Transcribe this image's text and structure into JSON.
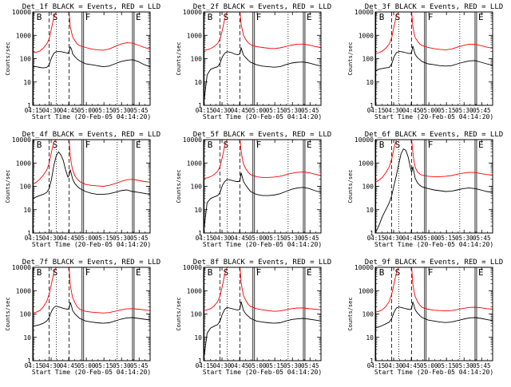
{
  "chart_data": {
    "type": "line",
    "shared": {
      "xlabel": "Start Time (20-Feb-05 04:14:20)",
      "ylabel": "Counts/sec",
      "x_unit": "minutes since 04:14:20",
      "xlim": [
        0,
        100
      ],
      "ylim": [
        1,
        10000
      ],
      "yscale": "log",
      "xtick_labels": [
        "04:15",
        "04:30",
        "04:45",
        "05:00",
        "05:15",
        "05:30",
        "05:45"
      ],
      "xtick_values": [
        0.67,
        15.67,
        30.67,
        45.67,
        60.67,
        75.67,
        90.67
      ],
      "ytick_labels": [
        "1",
        "10",
        "100",
        "1000",
        "10000"
      ],
      "ytick_values": [
        1,
        10,
        100,
        1000,
        10000
      ],
      "series_names": [
        "Events",
        "LLD"
      ],
      "series_colors": [
        "#000000",
        "#ff0000"
      ],
      "interval_markers": [
        {
          "label": "B",
          "x": 0.5,
          "style": "solid"
        },
        {
          "label": "S",
          "x": 14,
          "style": "dashed"
        },
        {
          "label": "",
          "x": 20,
          "style": "dotted"
        },
        {
          "label": "",
          "x": 31,
          "style": "dashed"
        },
        {
          "label": "F",
          "x": 42,
          "style": "solid"
        },
        {
          "label": "",
          "x": 72,
          "style": "dotted"
        },
        {
          "label": "E",
          "x": 85,
          "style": "solid"
        }
      ],
      "x_sample": [
        0,
        3,
        6,
        9,
        12,
        14,
        16,
        18,
        20,
        22,
        24,
        26,
        28,
        30,
        31,
        32,
        33,
        34,
        36,
        38,
        40,
        45,
        50,
        55,
        60,
        65,
        70,
        75,
        80,
        85,
        90,
        95,
        100
      ]
    },
    "panels": [
      {
        "title": "Det_1f BLACK = Events, RED = LLD",
        "series": [
          {
            "name": "Events",
            "values": [
              45,
              45,
              42,
              40,
              42,
              55,
              110,
              170,
              200,
              200,
              200,
              190,
              180,
              170,
              200,
              320,
              260,
              160,
              120,
              95,
              80,
              60,
              55,
              50,
              45,
              48,
              60,
              75,
              85,
              90,
              75,
              55,
              45
            ]
          },
          {
            "name": "LLD",
            "values": [
              180,
              190,
              210,
              280,
              430,
              700,
              2000,
              6000,
              10000,
              10000,
              10000,
              10000,
              10000,
              10000,
              10000,
              2400,
              1400,
              850,
              580,
              420,
              360,
              300,
              260,
              240,
              230,
              260,
              330,
              420,
              480,
              460,
              380,
              300,
              260
            ]
          }
        ]
      },
      {
        "title": "Det_2f BLACK = Events, RED = LLD",
        "series": [
          {
            "name": "Events",
            "values": [
              1,
              20,
              35,
              40,
              45,
              65,
              120,
              170,
              200,
              190,
              180,
              160,
              150,
              150,
              170,
              300,
              200,
              140,
              110,
              85,
              70,
              55,
              48,
              45,
              43,
              45,
              55,
              65,
              70,
              72,
              65,
              55,
              48
            ]
          },
          {
            "name": "LLD",
            "values": [
              230,
              240,
              270,
              330,
              450,
              700,
              1700,
              5000,
              10000,
              10000,
              10000,
              10000,
              10000,
              10000,
              10000,
              3000,
              1700,
              1000,
              650,
              480,
              400,
              330,
              300,
              280,
              270,
              290,
              330,
              380,
              420,
              420,
              380,
              330,
              300
            ]
          }
        ]
      },
      {
        "title": "Det_3f BLACK = Events, RED = LLD",
        "series": [
          {
            "name": "Events",
            "values": [
              30,
              35,
              38,
              40,
              42,
              60,
              120,
              180,
              200,
              200,
              190,
              180,
              170,
              165,
              190,
              350,
              230,
              150,
              110,
              90,
              75,
              60,
              55,
              50,
              48,
              50,
              60,
              70,
              80,
              82,
              70,
              60,
              52
            ]
          },
          {
            "name": "LLD",
            "values": [
              160,
              180,
              210,
              280,
              430,
              800,
              2500,
              7000,
              10000,
              10000,
              10000,
              10000,
              10000,
              10000,
              10000,
              2500,
              1300,
              800,
              560,
              420,
              360,
              300,
              270,
              250,
              240,
              260,
              310,
              370,
              420,
              410,
              360,
              310,
              280
            ]
          }
        ]
      },
      {
        "title": "Det_4f BLACK = Events, RED = LLD",
        "series": [
          {
            "name": "Events",
            "values": [
              30,
              35,
              40,
              45,
              55,
              80,
              200,
              800,
              2000,
              3000,
              2200,
              1300,
              500,
              250,
              300,
              520,
              330,
              200,
              130,
              100,
              80,
              60,
              50,
              45,
              45,
              48,
              55,
              65,
              70,
              60,
              55,
              50,
              45
            ]
          },
          {
            "name": "LLD",
            "values": [
              120,
              150,
              200,
              300,
              500,
              1000,
              3000,
              8000,
              10000,
              10000,
              10000,
              10000,
              10000,
              10000,
              10000,
              2000,
              900,
              500,
              280,
              200,
              160,
              120,
              110,
              105,
              100,
              110,
              130,
              160,
              190,
              200,
              180,
              160,
              150
            ]
          }
        ]
      },
      {
        "title": "Det_5f BLACK = Events, RED = LLD",
        "series": [
          {
            "name": "Events",
            "values": [
              1,
              20,
              30,
              35,
              40,
              55,
              110,
              160,
              200,
              190,
              180,
              170,
              160,
              160,
              180,
              380,
              250,
              160,
              110,
              80,
              60,
              45,
              40,
              40,
              42,
              48,
              60,
              75,
              85,
              90,
              80,
              65,
              55
            ]
          },
          {
            "name": "LLD",
            "values": [
              220,
              230,
              260,
              320,
              450,
              700,
              1800,
              5500,
              10000,
              10000,
              10000,
              10000,
              10000,
              10000,
              10000,
              3200,
              1600,
              900,
              560,
              400,
              320,
              260,
              240,
              240,
              250,
              270,
              310,
              360,
              400,
              410,
              380,
              330,
              290
            ]
          }
        ]
      },
      {
        "title": "Det_6f BLACK = Events, RED = LLD",
        "series": [
          {
            "name": "Events",
            "values": [
              1,
              2,
              5,
              10,
              20,
              40,
              110,
              300,
              900,
              2500,
              4000,
              3500,
              1800,
              600,
              400,
              700,
              400,
              220,
              140,
              110,
              95,
              80,
              70,
              65,
              60,
              62,
              70,
              80,
              85,
              80,
              70,
              60,
              55
            ]
          },
          {
            "name": "LLD",
            "values": [
              150,
              180,
              240,
              380,
              700,
              1500,
              4500,
              10000,
              10000,
              10000,
              10000,
              10000,
              10000,
              10000,
              10000,
              3000,
              1200,
              650,
              420,
              330,
              300,
              270,
              260,
              260,
              270,
              290,
              330,
              370,
              400,
              390,
              350,
              320,
              300
            ]
          }
        ]
      },
      {
        "title": "Det_7f BLACK = Events, RED = LLD",
        "series": [
          {
            "name": "Events",
            "values": [
              30,
              32,
              35,
              40,
              50,
              70,
              130,
              190,
              220,
              200,
              190,
              175,
              165,
              160,
              180,
              320,
              220,
              140,
              100,
              80,
              65,
              50,
              45,
              42,
              40,
              42,
              50,
              60,
              68,
              70,
              65,
              60,
              55
            ]
          },
          {
            "name": "LLD",
            "values": [
              110,
              120,
              140,
              200,
              350,
              700,
              2000,
              6000,
              10000,
              10000,
              10000,
              10000,
              10000,
              10000,
              10000,
              1800,
              900,
              500,
              300,
              200,
              160,
              130,
              120,
              115,
              110,
              115,
              130,
              150,
              165,
              170,
              160,
              150,
              140
            ]
          }
        ]
      },
      {
        "title": "Det_8f BLACK = Events, RED = LLD",
        "series": [
          {
            "name": "Events",
            "values": [
              1,
              15,
              25,
              30,
              35,
              50,
              100,
              160,
              190,
              180,
              170,
              160,
              150,
              150,
              170,
              340,
              220,
              140,
              100,
              80,
              65,
              50,
              45,
              42,
              40,
              42,
              50,
              58,
              62,
              65,
              60,
              55,
              50
            ]
          },
          {
            "name": "LLD",
            "values": [
              140,
              150,
              170,
              220,
              340,
              600,
              1600,
              5000,
              10000,
              10000,
              10000,
              10000,
              10000,
              10000,
              10000,
              2200,
              1100,
              600,
              380,
              260,
              210,
              170,
              150,
              140,
              130,
              135,
              150,
              170,
              180,
              180,
              170,
              160,
              150
            ]
          }
        ]
      },
      {
        "title": "Det_9f BLACK = Events, RED = LLD",
        "series": [
          {
            "name": "Events",
            "values": [
              25,
              28,
              32,
              38,
              45,
              65,
              120,
              180,
              200,
              190,
              180,
              170,
              160,
              155,
              175,
              330,
              230,
              150,
              110,
              85,
              70,
              55,
              50,
              45,
              43,
              45,
              52,
              60,
              68,
              70,
              65,
              58,
              52
            ]
          },
          {
            "name": "LLD",
            "values": [
              120,
              130,
              150,
              210,
              350,
              700,
              2000,
              6000,
              10000,
              10000,
              10000,
              10000,
              10000,
              10000,
              10000,
              2000,
              1000,
              560,
              340,
              240,
              190,
              160,
              145,
              140,
              135,
              140,
              155,
              175,
              190,
              195,
              185,
              170,
              160
            ]
          }
        ]
      }
    ]
  }
}
